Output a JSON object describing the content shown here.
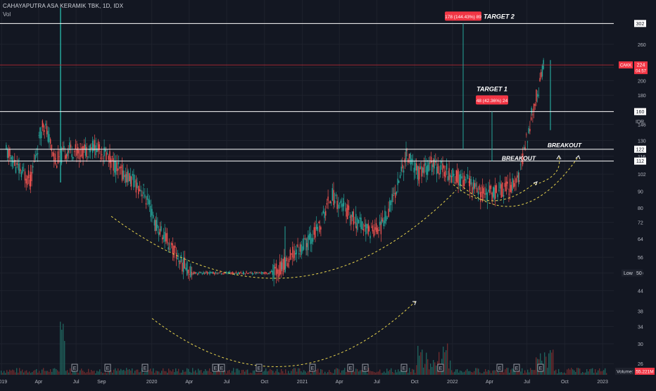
{
  "header": {
    "symbol_line": "CAHAYAPUTRA ASA KERAMIK TBK, 1D, IDX",
    "vol_label": "Vol"
  },
  "colors": {
    "up": "#26a69a",
    "down": "#ef5350",
    "annotation": "#e8d44d",
    "price_tag": "#f23645",
    "hline": "#ffffff"
  },
  "chart_data": {
    "type": "line",
    "title": "CAHAYAPUTRA ASA KERAMIK TBK, 1D, IDX",
    "currency": "IDR",
    "scale": "log",
    "ylim": [
      24,
      340
    ],
    "x_ticks": [
      "2019",
      "Apr",
      "Jul",
      "Sep",
      "2020",
      "Apr",
      "Jul",
      "Oct",
      "2021",
      "Apr",
      "Jul",
      "Oct",
      "2022",
      "Apr",
      "Jul",
      "Oct",
      "2023"
    ],
    "y_ticks": [
      26,
      30,
      34,
      38,
      44,
      50,
      56,
      64,
      72,
      80,
      90,
      102,
      116,
      130,
      146,
      160,
      180,
      200,
      220,
      260,
      302
    ],
    "series": [
      {
        "x": [
          "2019-01",
          "2019-02",
          "2019-03",
          "2019-04",
          "2019-05",
          "2019-06",
          "2019-07",
          "2019-08",
          "2019-09",
          "2019-10",
          "2019-11",
          "2019-12",
          "2020-01",
          "2020-02",
          "2020-03",
          "2020-04",
          "2020-05",
          "2020-06",
          "2020-07",
          "2020-08",
          "2020-09",
          "2020-10",
          "2020-11",
          "2020-12",
          "2021-01",
          "2021-02",
          "2021-03",
          "2021-04",
          "2021-05",
          "2021-06",
          "2021-07",
          "2021-08",
          "2021-09",
          "2021-10",
          "2021-11",
          "2021-12",
          "2022-01",
          "2022-02",
          "2022-03",
          "2022-04",
          "2022-05",
          "2022-06",
          "2022-07",
          "2022-08"
        ],
        "values": [
          120,
          105,
          98,
          150,
          112,
          122,
          120,
          125,
          118,
          105,
          98,
          90,
          70,
          62,
          54,
          50,
          50,
          50,
          50,
          50,
          50,
          50,
          52,
          58,
          62,
          70,
          88,
          80,
          72,
          68,
          70,
          88,
          118,
          102,
          110,
          105,
          100,
          95,
          88,
          90,
          92,
          100,
          155,
          224
        ]
      }
    ],
    "levels": [
      {
        "label": "302",
        "value": 302
      },
      {
        "label": "160",
        "value": 160
      },
      {
        "label": "122",
        "value": 122
      },
      {
        "label": "112",
        "value": 112
      }
    ],
    "low_marker": {
      "label": "Low",
      "value": "50"
    },
    "last_price": {
      "symbol": "CAKK",
      "value": "224",
      "countdown": "04:57"
    },
    "volume_tag": {
      "label": "Volume",
      "value": "55.221M"
    },
    "measures": [
      {
        "text": "178 (144.43%) 89",
        "target": "TARGET 2"
      },
      {
        "text": "48 (42.36%) 24",
        "target": "TARGET 1"
      }
    ],
    "annotations": [
      "BREAKOUT",
      "BREAKOUT"
    ],
    "earnings_markers": [
      "E",
      "E",
      "E",
      "E",
      "E",
      "E",
      "E",
      "E",
      "E",
      "E",
      "E",
      "E",
      "E",
      "E"
    ]
  }
}
